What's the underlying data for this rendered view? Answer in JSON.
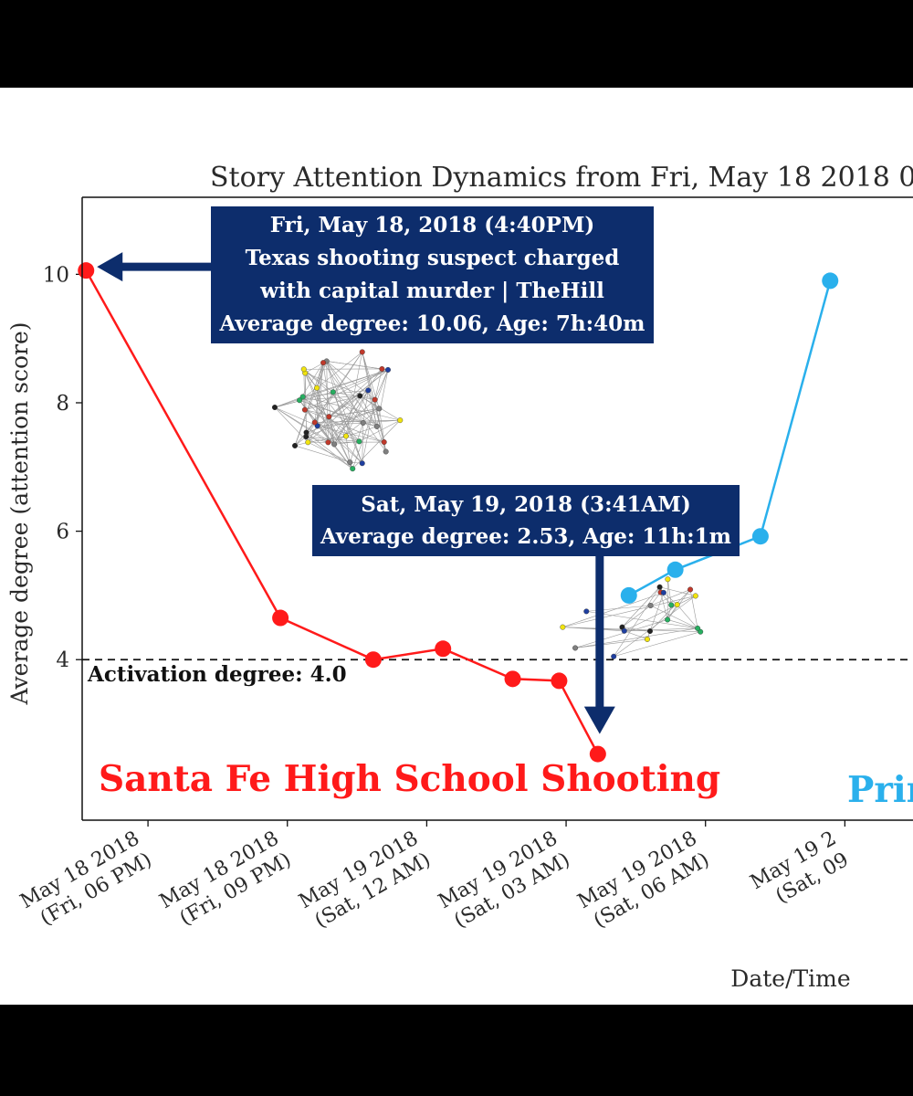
{
  "chart_data": {
    "type": "line",
    "title": "Story Attention Dynamics from Fri, May 18 2018 0",
    "xlabel": "Date/Time",
    "ylabel": "Average degree (attention score)",
    "ylim": [
      1.5,
      11.2
    ],
    "xlim": [
      "2018-05-18 16:35",
      "2018-05-19 10:28"
    ],
    "yticks": [
      4,
      6,
      8,
      10
    ],
    "xticks": [
      {
        "t": "2018-05-18 18:00",
        "line1": "May 18 2018",
        "line2": "(Fri, 06 PM)"
      },
      {
        "t": "2018-05-18 21:00",
        "line1": "May 18 2018",
        "line2": "(Fri, 09 PM)"
      },
      {
        "t": "2018-05-19 00:00",
        "line1": "May 19 2018",
        "line2": "(Sat, 12 AM)"
      },
      {
        "t": "2018-05-19 03:00",
        "line1": "May 19 2018",
        "line2": "(Sat, 03 AM)"
      },
      {
        "t": "2018-05-19 06:00",
        "line1": "May 19 2018",
        "line2": "(Sat, 06 AM)"
      },
      {
        "t": "2018-05-19 09:00",
        "line1": "May 19 2",
        "line2": "(Sat, 09"
      }
    ],
    "threshold": {
      "y": 4.0,
      "label": "Activation degree: 4.0"
    },
    "grid": false,
    "series": [
      {
        "name": "Santa Fe High School Shooting",
        "color": "#ff1a1a",
        "points": [
          {
            "t": "2018-05-18 16:40",
            "y": 10.06
          },
          {
            "t": "2018-05-18 20:51",
            "y": 4.65
          },
          {
            "t": "2018-05-18 22:51",
            "y": 4.0
          },
          {
            "t": "2018-05-19 00:21",
            "y": 4.17
          },
          {
            "t": "2018-05-19 01:51",
            "y": 3.7
          },
          {
            "t": "2018-05-19 02:51",
            "y": 3.67
          },
          {
            "t": "2018-05-19 03:41",
            "y": 2.53
          }
        ]
      },
      {
        "name": "Prin",
        "color": "#2ab0ec",
        "points": [
          {
            "t": "2018-05-19 04:21",
            "y": 5.0
          },
          {
            "t": "2018-05-19 05:21",
            "y": 5.4
          },
          {
            "t": "2018-05-19 07:11",
            "y": 5.92
          },
          {
            "t": "2018-05-19 08:41",
            "y": 9.9
          }
        ]
      }
    ],
    "annotations": [
      {
        "lines": [
          "Fri, May 18, 2018 (4:40PM)",
          "Texas shooting suspect charged",
          "with capital murder | TheHill",
          "Average degree: 10.06, Age: 7h:40m"
        ]
      },
      {
        "lines": [
          "Sat, May 19, 2018 (3:41AM)",
          "Average degree: 2.53, Age: 11h:1m"
        ]
      }
    ]
  }
}
